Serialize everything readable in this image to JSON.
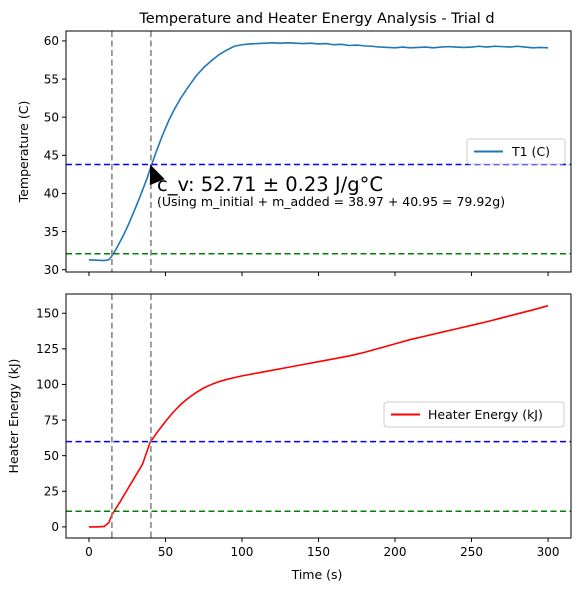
{
  "title": "Temperature and Heater Energy Analysis - Trial d",
  "annotation": {
    "cv_label": "c_v: 52.71 ± 0.23 J/g°C",
    "mass_label": "(Using m_initial + m_added = 38.97 +  40.95 = 79.92g)"
  },
  "colors": {
    "temperature": "#1f77b4",
    "energy": "#ff0000",
    "vline": "#808080",
    "hline_upper": "#0000ff",
    "hline_lower": "#008000",
    "arrow": "#000000"
  },
  "chart_data": [
    {
      "type": "line",
      "id": "temperature",
      "xlabel": "",
      "ylabel": "Temperature (C)",
      "xlim": [
        -15,
        315
      ],
      "ylim": [
        29.7,
        61.3
      ],
      "xticks": [
        0,
        50,
        100,
        150,
        200,
        250,
        300
      ],
      "yticks": [
        30,
        35,
        40,
        45,
        50,
        55,
        60
      ],
      "grid": false,
      "legend": "center-right",
      "series": [
        {
          "name": "T1 (C)",
          "x": [
            0,
            5,
            10,
            13,
            15,
            18,
            22,
            26,
            30,
            34,
            38,
            41,
            44,
            48,
            52,
            56,
            60,
            65,
            70,
            75,
            80,
            85,
            90,
            95,
            100,
            105,
            110,
            115,
            120,
            125,
            130,
            135,
            140,
            145,
            150,
            155,
            160,
            165,
            170,
            175,
            180,
            185,
            190,
            195,
            200,
            205,
            210,
            215,
            220,
            225,
            230,
            235,
            240,
            245,
            250,
            255,
            260,
            265,
            270,
            275,
            280,
            285,
            290,
            295,
            300
          ],
          "y": [
            31.3,
            31.25,
            31.2,
            31.3,
            31.8,
            32.8,
            34.3,
            36.0,
            37.9,
            39.9,
            42.0,
            43.8,
            45.5,
            47.6,
            49.5,
            51.1,
            52.5,
            54.0,
            55.4,
            56.5,
            57.4,
            58.2,
            58.8,
            59.3,
            59.5,
            59.6,
            59.65,
            59.7,
            59.75,
            59.7,
            59.75,
            59.7,
            59.65,
            59.7,
            59.6,
            59.65,
            59.5,
            59.55,
            59.4,
            59.45,
            59.35,
            59.3,
            59.2,
            59.15,
            59.1,
            59.2,
            59.1,
            59.15,
            59.2,
            59.1,
            59.2,
            59.25,
            59.2,
            59.15,
            59.2,
            59.3,
            59.2,
            59.3,
            59.25,
            59.2,
            59.3,
            59.2,
            59.1,
            59.15,
            59.1
          ]
        }
      ],
      "vlines": [
        15,
        40.5
      ],
      "hlines": [
        {
          "y": 43.8,
          "style": "upper"
        },
        {
          "y": 32.1,
          "style": "lower"
        }
      ],
      "arrow": {
        "from": [
          45,
          41.3
        ],
        "to": [
          40,
          43.8
        ]
      }
    },
    {
      "type": "line",
      "id": "energy",
      "xlabel": "Time (s)",
      "ylabel": "Heater Energy (kJ)",
      "xlim": [
        -15,
        315
      ],
      "ylim": [
        -7.8,
        163.5
      ],
      "xticks": [
        0,
        50,
        100,
        150,
        200,
        250,
        300
      ],
      "yticks": [
        0,
        25,
        50,
        75,
        100,
        125,
        150
      ],
      "grid": false,
      "legend": "center-right",
      "series": [
        {
          "name": "Heater Energy (kJ)",
          "x": [
            0,
            5,
            10,
            13,
            15,
            20,
            25,
            30,
            35,
            40,
            45,
            50,
            55,
            60,
            65,
            70,
            75,
            80,
            85,
            90,
            95,
            100,
            110,
            120,
            130,
            140,
            150,
            160,
            170,
            180,
            190,
            200,
            210,
            220,
            230,
            240,
            250,
            260,
            270,
            280,
            290,
            300
          ],
          "y": [
            0,
            0,
            0.3,
            3,
            8.5,
            17,
            26,
            35,
            44,
            59.5,
            67,
            74,
            80.5,
            86,
            90.5,
            94.3,
            97.5,
            100,
            102,
            103.5,
            104.8,
            106,
            108,
            110,
            112,
            114,
            116,
            118,
            120,
            122.5,
            125.5,
            128.5,
            131.5,
            134,
            136.5,
            139,
            141.5,
            144,
            146.8,
            149.6,
            152.3,
            155.3
          ]
        }
      ],
      "vlines": [
        15,
        40.5
      ],
      "hlines": [
        {
          "y": 59.9,
          "style": "upper"
        },
        {
          "y": 11.0,
          "style": "lower"
        }
      ]
    }
  ]
}
